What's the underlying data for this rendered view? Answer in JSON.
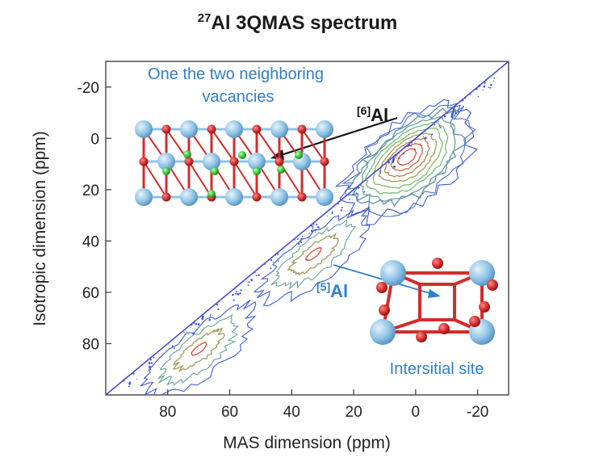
{
  "chart_data": {
    "type": "contour",
    "title_sup": "27",
    "title_main": "Al 3QMAS spectrum",
    "xlabel": "MAS dimension (ppm)",
    "ylabel": "Isotropic dimension (ppm)",
    "xlim": [
      100,
      -30
    ],
    "ylim": [
      -30,
      100
    ],
    "x_ticks": [
      80,
      60,
      40,
      20,
      0,
      -20
    ],
    "y_ticks": [
      -20,
      0,
      20,
      40,
      60,
      80
    ],
    "diagonal": [
      [
        100,
        100
      ],
      [
        -30,
        -30
      ]
    ],
    "peaks": [
      {
        "center": [
          3,
          7
        ],
        "contours": 10
      },
      {
        "center": [
          33,
          45
        ],
        "contours": 4
      },
      {
        "center": [
          70,
          82
        ],
        "contours": 4
      }
    ],
    "annotations": {
      "vacancy_line1": "One the two neighboring",
      "vacancy_line2": "vacancies",
      "al6_sup": "[6]",
      "al6_main": "Al",
      "al5_sup": "[5]",
      "al5_main": "Al",
      "interstitial": "Intersitial site"
    },
    "colors": {
      "diagonal": "#4a4ac8",
      "contour_outer": "#3d5bd9",
      "contour_mid": "#7bc96f",
      "contour_inner": "#e04a3a",
      "annotation_blue": "#2f7fc9",
      "atom_al": "#8fc3e6",
      "atom_o": "#d42b2b",
      "atom_vacancy": "#36c436"
    }
  }
}
